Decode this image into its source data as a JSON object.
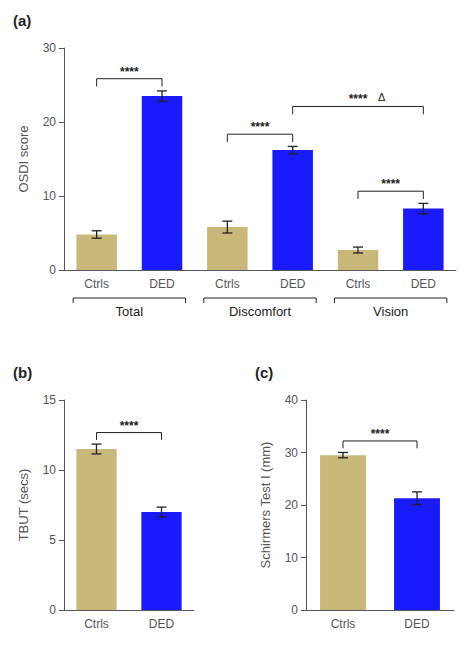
{
  "chart_data": [
    {
      "type": "bar",
      "title": "(a)",
      "categories": [
        "Ctrls",
        "DED",
        "Ctrls",
        "DED",
        "Ctrls",
        "DED"
      ],
      "values": [
        4.8,
        23.5,
        5.8,
        16.2,
        2.7,
        8.3
      ],
      "errors": [
        0.5,
        0.7,
        0.8,
        0.5,
        0.4,
        0.7
      ],
      "colors": [
        "#c8b87a",
        "#1a1aff",
        "#c8b87a",
        "#1a1aff",
        "#c8b87a",
        "#1a1aff"
      ],
      "ylabel": "OSDI score",
      "ylim": [
        0,
        30
      ],
      "yticks": [
        0,
        10,
        20,
        30
      ],
      "grid": false,
      "group_labels": [
        {
          "text": "Total",
          "marks": [
            0,
            1
          ]
        },
        {
          "text": "Discomfort",
          "marks": [
            2,
            3
          ]
        },
        {
          "text": "Vision",
          "marks": [
            4,
            5
          ]
        }
      ],
      "annotations": [
        {
          "text": "****",
          "marks": [
            0,
            1
          ]
        },
        {
          "text": "****",
          "marks": [
            2,
            3
          ]
        },
        {
          "text": "****",
          "marks": [
            4,
            5
          ]
        },
        {
          "text": "****",
          "marks": [
            3,
            5
          ],
          "note": "Δ"
        }
      ]
    },
    {
      "type": "bar",
      "title": "(b)",
      "categories": [
        "Ctrls",
        "DED"
      ],
      "values": [
        11.5,
        7.0
      ],
      "errors": [
        0.35,
        0.35
      ],
      "colors": [
        "#c8b87a",
        "#1a1aff"
      ],
      "ylabel": "TBUT (secs)",
      "ylim": [
        0,
        15
      ],
      "yticks": [
        0,
        5,
        10,
        15
      ],
      "grid": false,
      "annotations": [
        {
          "text": "****",
          "marks": [
            0,
            1
          ]
        }
      ]
    },
    {
      "type": "bar",
      "title": "(c)",
      "categories": [
        "Ctrls",
        "DED"
      ],
      "values": [
        29.5,
        21.3
      ],
      "errors": [
        0.5,
        1.2
      ],
      "colors": [
        "#c8b87a",
        "#1a1aff"
      ],
      "ylabel": "Schirmers Test I (mm)",
      "ylim": [
        0,
        40
      ],
      "yticks": [
        0,
        10,
        20,
        30,
        40
      ],
      "grid": false,
      "annotations": [
        {
          "text": "****",
          "marks": [
            0,
            1
          ]
        }
      ]
    }
  ]
}
